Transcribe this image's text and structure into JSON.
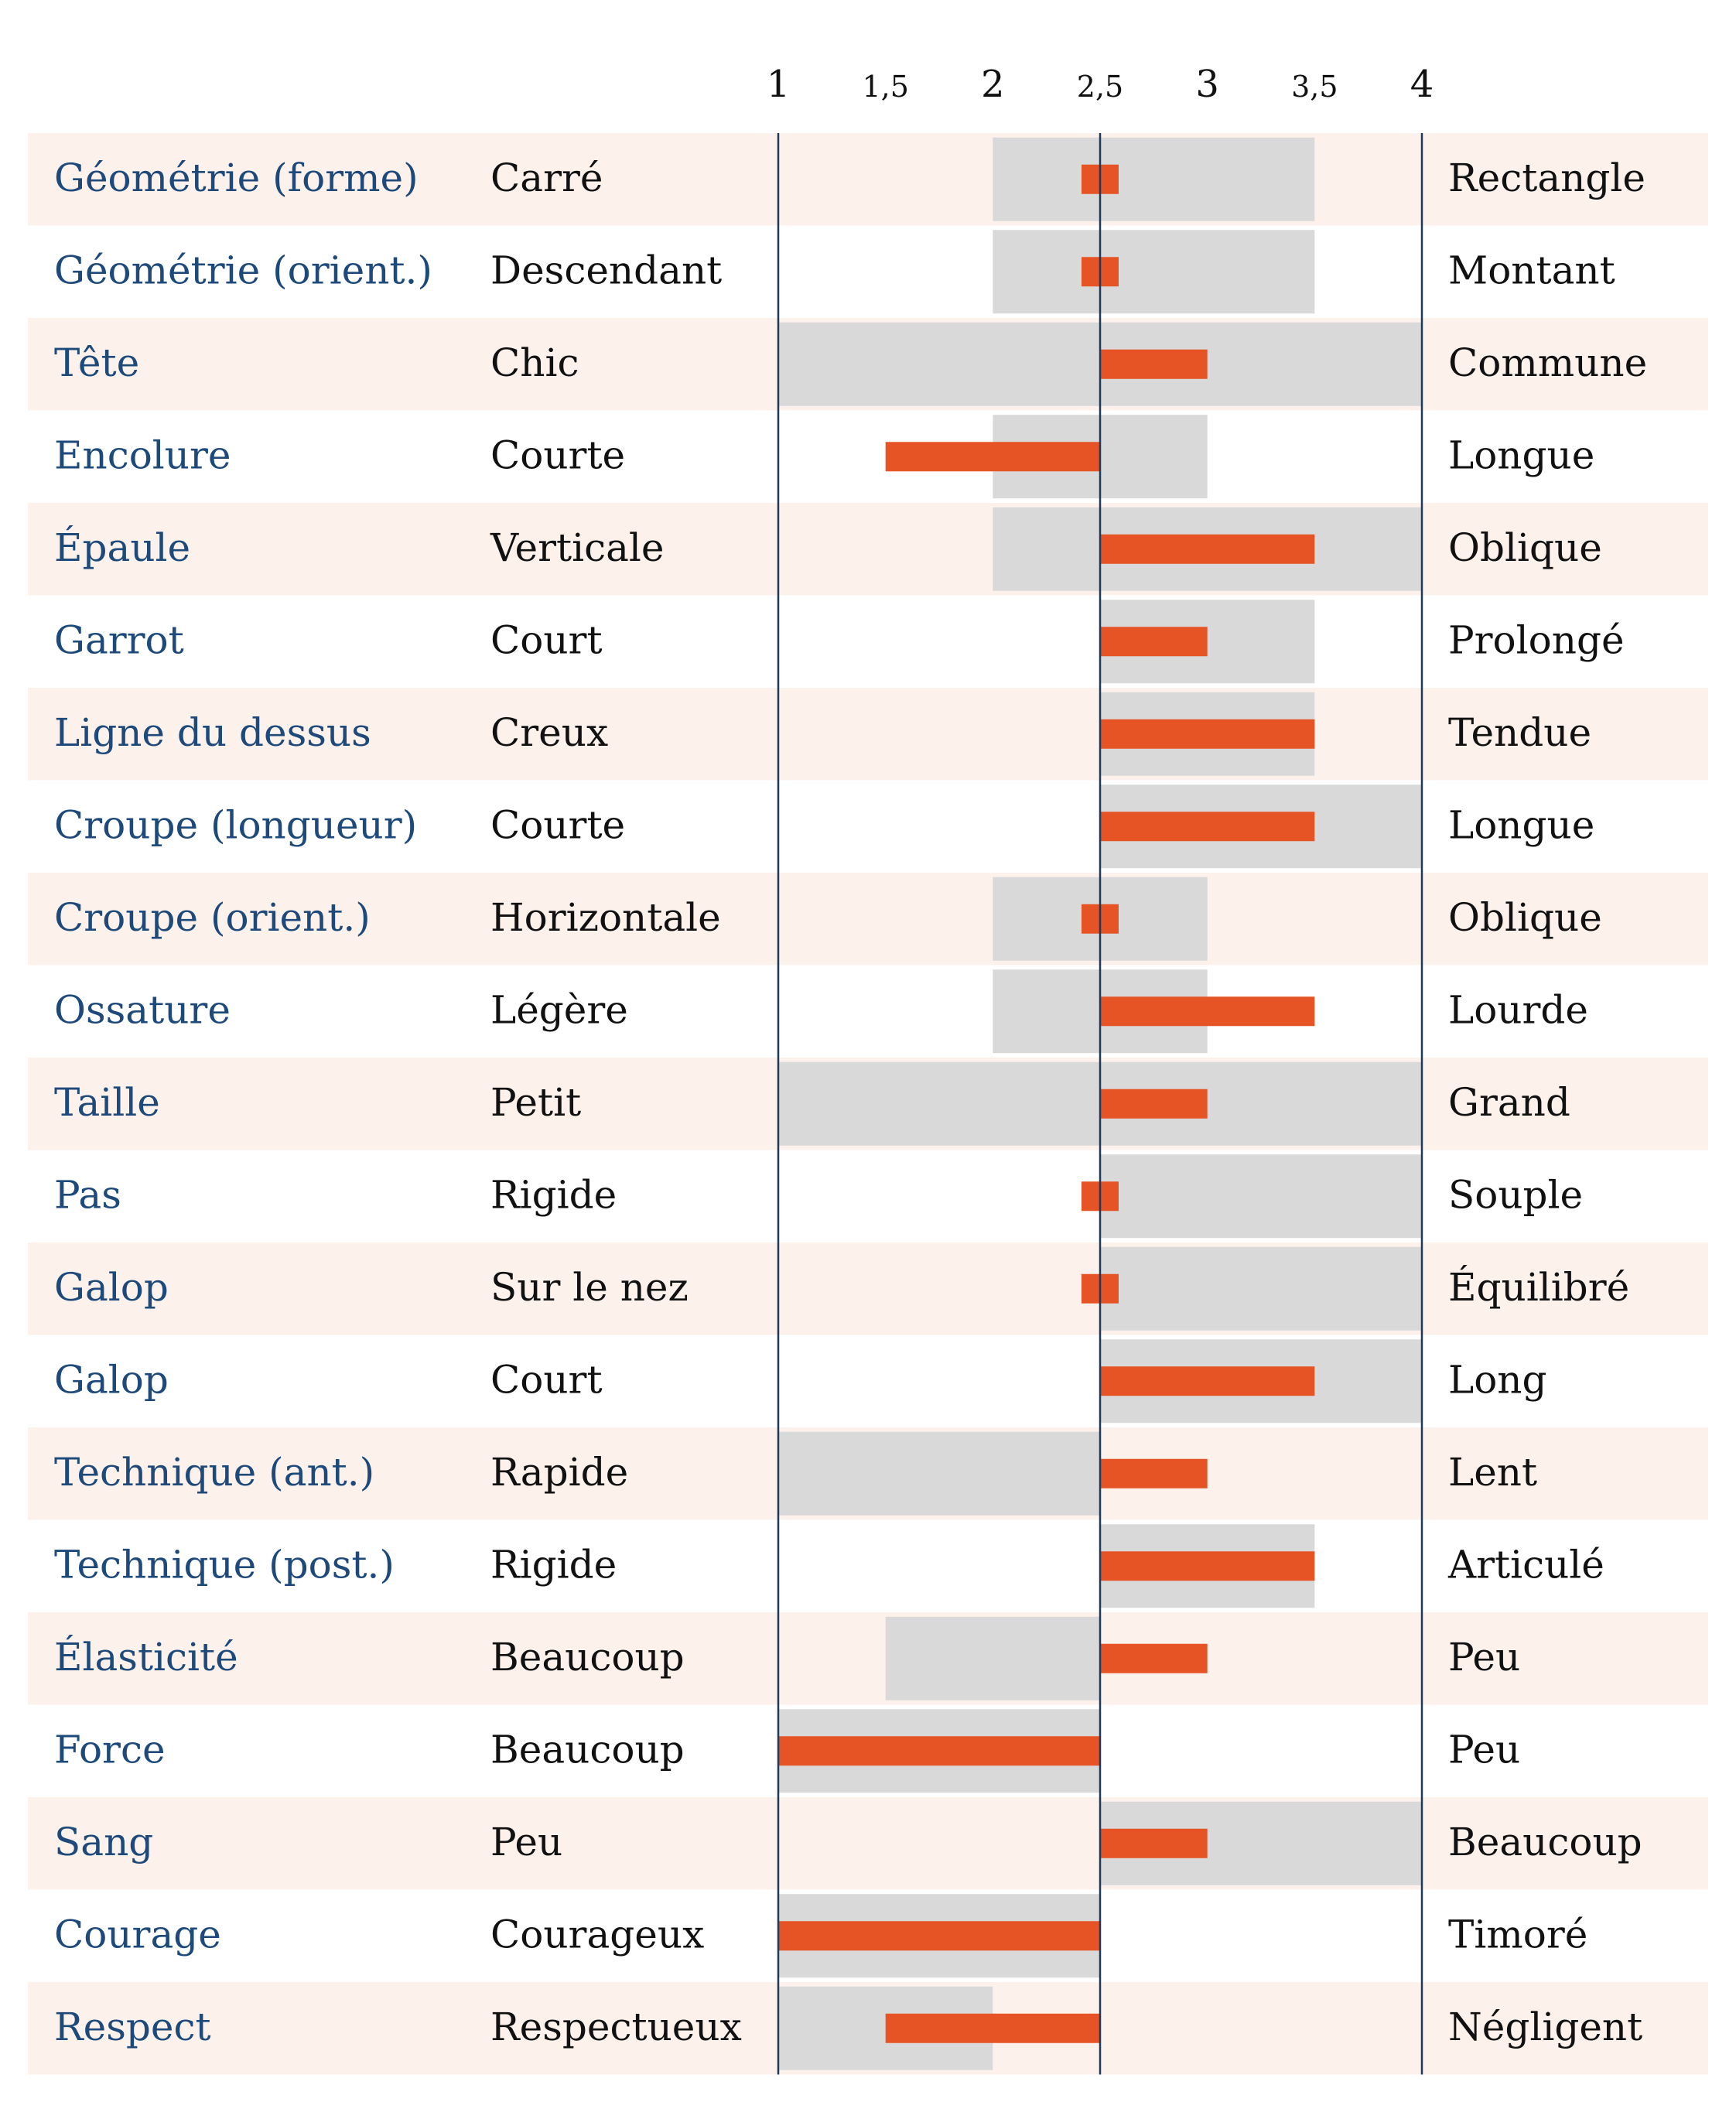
{
  "chart_data": {
    "type": "bar",
    "x_ticks": [
      "1",
      "1,5",
      "2",
      "2,5",
      "3",
      "3,5",
      "4"
    ],
    "x_tick_values": [
      1,
      1.5,
      2,
      2.5,
      3,
      3.5,
      4
    ],
    "xlim": [
      1,
      4
    ],
    "baseline": 2.5,
    "colors": {
      "bar": "#e65324",
      "range": "#d9d9d9",
      "row_stripe": "#fdf1ec",
      "axis_line": "#1b3a5c",
      "trait_text": "#1d4a7a",
      "pole_text": "#111111"
    },
    "rows": [
      {
        "trait": "Géométrie (forme)",
        "low": "Carré",
        "high": "Rectangle",
        "range": [
          2,
          3.5
        ],
        "value": 2.5
      },
      {
        "trait": "Géométrie (orient.)",
        "low": "Descendant",
        "high": "Montant",
        "range": [
          2,
          3.5
        ],
        "value": 2.5
      },
      {
        "trait": "Tête",
        "low": "Chic",
        "high": "Commune",
        "range": [
          1,
          4
        ],
        "value": 3
      },
      {
        "trait": "Encolure",
        "low": "Courte",
        "high": "Longue",
        "range": [
          2,
          3
        ],
        "value": 1.5
      },
      {
        "trait": "Épaule",
        "low": "Verticale",
        "high": "Oblique",
        "range": [
          2,
          4
        ],
        "value": 3.5
      },
      {
        "trait": "Garrot",
        "low": "Court",
        "high": "Prolongé",
        "range": [
          2.5,
          3.5
        ],
        "value": 3
      },
      {
        "trait": "Ligne du dessus",
        "low": "Creux",
        "high": "Tendue",
        "range": [
          2.5,
          3.5
        ],
        "value": 3.5
      },
      {
        "trait": "Croupe (longueur)",
        "low": "Courte",
        "high": "Longue",
        "range": [
          2.5,
          4
        ],
        "value": 3.5
      },
      {
        "trait": "Croupe (orient.)",
        "low": "Horizontale",
        "high": "Oblique",
        "range": [
          2,
          3
        ],
        "value": 2.5
      },
      {
        "trait": "Ossature",
        "low": "Légère",
        "high": "Lourde",
        "range": [
          2,
          3
        ],
        "value": 3.5
      },
      {
        "trait": "Taille",
        "low": "Petit",
        "high": "Grand",
        "range": [
          1,
          4
        ],
        "value": 3
      },
      {
        "trait": "Pas",
        "low": "Rigide",
        "high": "Souple",
        "range": [
          2.5,
          4
        ],
        "value": 2.5
      },
      {
        "trait": "Galop",
        "low": "Sur le nez",
        "high": "Équilibré",
        "range": [
          2.5,
          4
        ],
        "value": 2.5
      },
      {
        "trait": "Galop",
        "low": "Court",
        "high": "Long",
        "range": [
          2.5,
          4
        ],
        "value": 3.5
      },
      {
        "trait": "Technique (ant.)",
        "low": "Rapide",
        "high": "Lent",
        "range": [
          1,
          2.5
        ],
        "value": 3
      },
      {
        "trait": "Technique (post.)",
        "low": "Rigide",
        "high": "Articulé",
        "range": [
          2.5,
          3.5
        ],
        "value": 3.5
      },
      {
        "trait": "Élasticité",
        "low": "Beaucoup",
        "high": "Peu",
        "range": [
          1.5,
          2.5
        ],
        "value": 3
      },
      {
        "trait": "Force",
        "low": "Beaucoup",
        "high": "Peu",
        "range": [
          1,
          2.5
        ],
        "value": 1
      },
      {
        "trait": "Sang",
        "low": "Peu",
        "high": "Beaucoup",
        "range": [
          2.5,
          4
        ],
        "value": 3
      },
      {
        "trait": "Courage",
        "low": "Courageux",
        "high": "Timoré",
        "range": [
          1,
          2.5
        ],
        "value": 1
      },
      {
        "trait": "Respect",
        "low": "Respectueux",
        "high": "Négligent",
        "range": [
          1,
          2
        ],
        "value": 1.5
      }
    ]
  }
}
